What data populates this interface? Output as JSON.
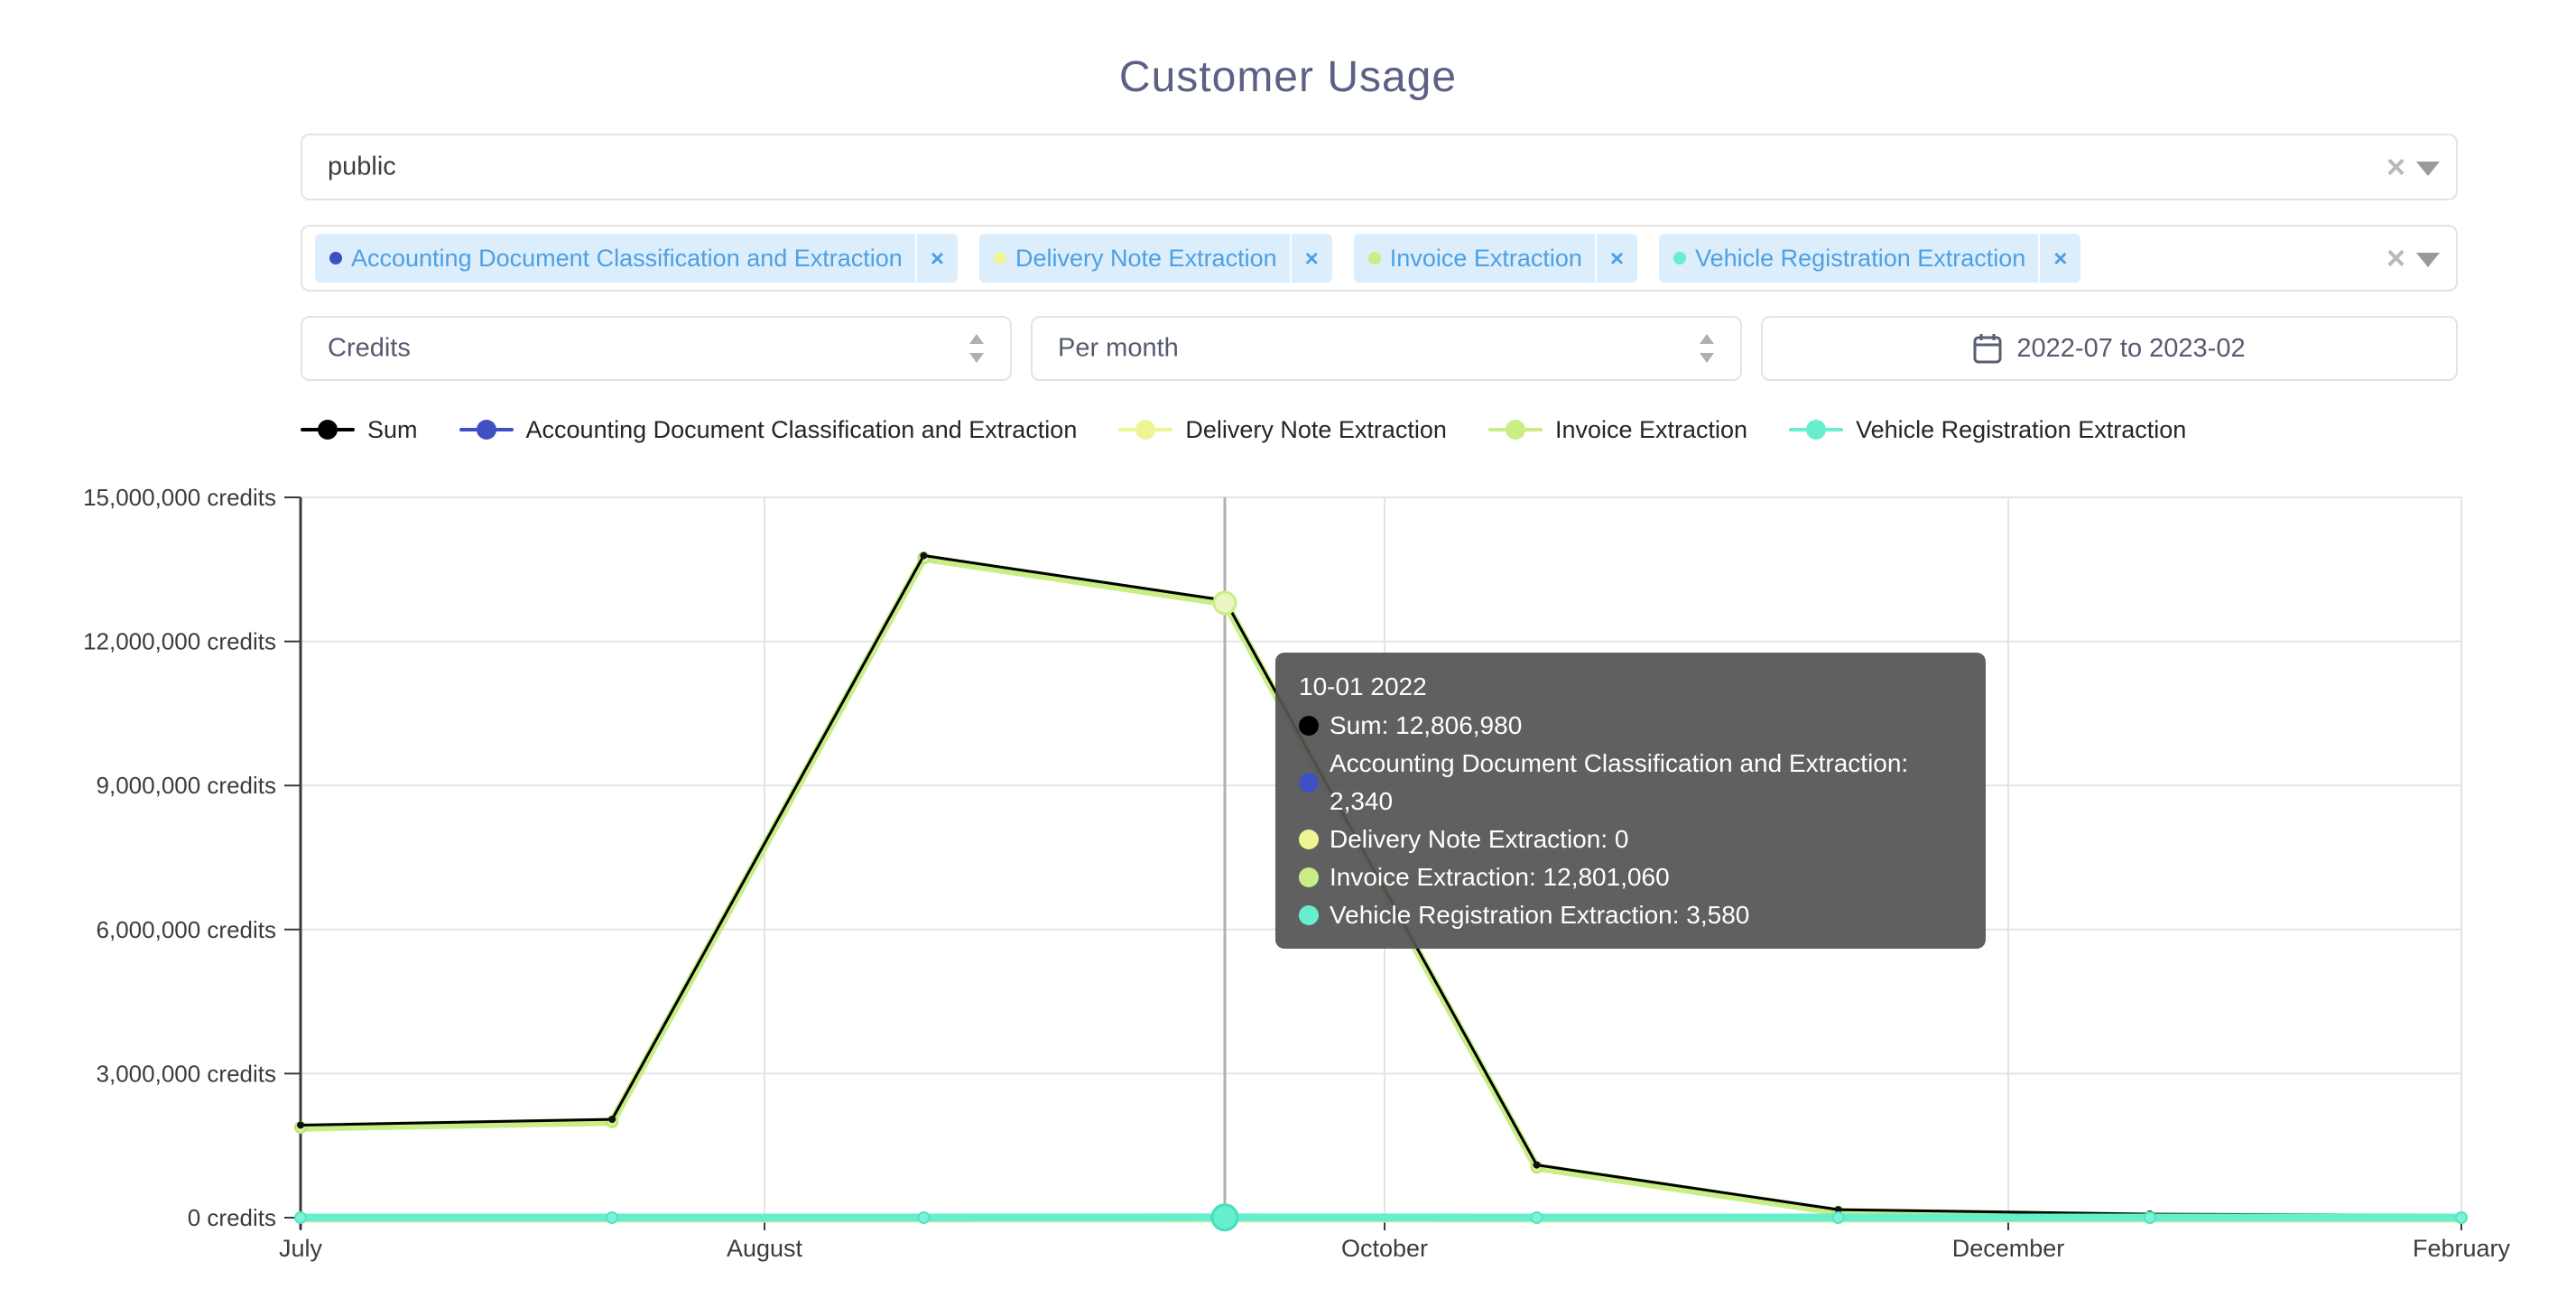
{
  "page": {
    "title": "Customer Usage"
  },
  "filters": {
    "customer_select": {
      "value": "public",
      "clear_icon": "×"
    },
    "service_multiselect": {
      "clear_icon": "×",
      "tags": [
        {
          "label": "Accounting Document Classification and Extraction",
          "color": "#3E50C4",
          "remove_label": "×"
        },
        {
          "label": "Delivery Note Extraction",
          "color": "#EEF595",
          "remove_label": "×"
        },
        {
          "label": "Invoice Extraction",
          "color": "#C8EE85",
          "remove_label": "×"
        },
        {
          "label": "Vehicle Registration Extraction",
          "color": "#66EECD",
          "remove_label": "×"
        }
      ]
    },
    "metric_select": {
      "value": "Credits"
    },
    "granularity_select": {
      "value": "Per month"
    },
    "date_range": {
      "value": "2022-07 to 2023-02"
    }
  },
  "legend": [
    {
      "label": "Sum",
      "color": "#000000"
    },
    {
      "label": "Accounting Document Classification and Extraction",
      "color": "#3E50C4"
    },
    {
      "label": "Delivery Note Extraction",
      "color": "#EEF595"
    },
    {
      "label": "Invoice Extraction",
      "color": "#C8EE85"
    },
    {
      "label": "Vehicle Registration Extraction",
      "color": "#66EECD"
    }
  ],
  "tooltip": {
    "title": "10-01 2022",
    "rows": [
      {
        "label": "Sum",
        "value": "12,806,980",
        "color": "#000000"
      },
      {
        "label": "Accounting Document Classification and Extraction",
        "value": "2,340",
        "color": "#3E50C4"
      },
      {
        "label": "Delivery Note Extraction",
        "value": "0",
        "color": "#EEF595"
      },
      {
        "label": "Invoice Extraction",
        "value": "12,801,060",
        "color": "#C8EE85"
      },
      {
        "label": "Vehicle Registration Extraction",
        "value": "3,580",
        "color": "#66EECD"
      }
    ]
  },
  "chart_data": {
    "type": "line",
    "title": "",
    "xlabel": "",
    "ylabel": "credits",
    "x": [
      "2022-07",
      "2022-08",
      "2022-09",
      "2022-10",
      "2022-11",
      "2022-12",
      "2023-01",
      "2023-02"
    ],
    "x_tick_labels": [
      "July",
      "August",
      "October",
      "December",
      "February"
    ],
    "y_ticks": [
      0,
      3000000,
      6000000,
      9000000,
      12000000,
      15000000
    ],
    "y_tick_labels": [
      "0 credits",
      "3,000,000 credits",
      "6,000,000 credits",
      "9,000,000 credits",
      "12,000,000 credits",
      "15,000,000 credits"
    ],
    "ylim": [
      0,
      15000000
    ],
    "grid": true,
    "legend_position": "top",
    "highlighted_x": "2022-10",
    "series": [
      {
        "name": "Sum",
        "color": "#000000",
        "values": [
          1880000,
          2000000,
          13740000,
          12806980,
          1050000,
          120000,
          25000,
          0
        ]
      },
      {
        "name": "Accounting Document Classification and Extraction",
        "color": "#3E50C4",
        "values": [
          0,
          0,
          0,
          2340,
          0,
          0,
          0,
          0
        ]
      },
      {
        "name": "Delivery Note Extraction",
        "color": "#EEF595",
        "values": [
          0,
          0,
          0,
          0,
          0,
          0,
          0,
          0
        ]
      },
      {
        "name": "Invoice Extraction",
        "color": "#C8EE85",
        "values": [
          1876000,
          1997000,
          13736000,
          12801060,
          1047000,
          118000,
          23000,
          0
        ]
      },
      {
        "name": "Vehicle Registration Extraction",
        "color": "#66EECD",
        "values": [
          0,
          0,
          0,
          3580,
          0,
          0,
          0,
          0
        ]
      }
    ]
  }
}
